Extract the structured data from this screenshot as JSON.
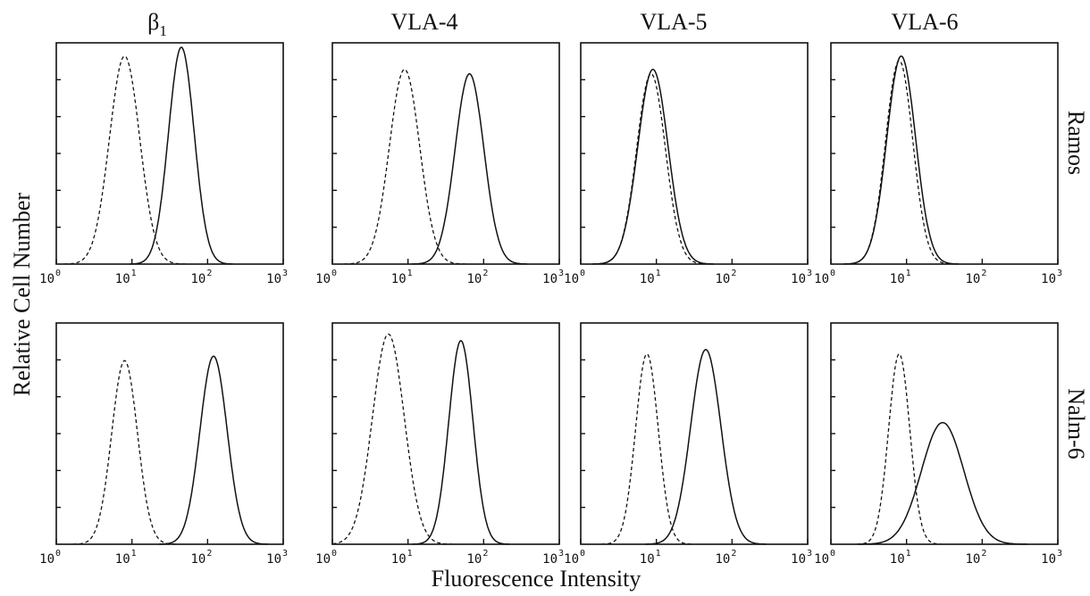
{
  "chart_data": {
    "type": "line",
    "column_titles": [
      "β",
      "VLA-4",
      "VLA-5",
      "VLA-6"
    ],
    "column_title_subscripts": [
      "1",
      "",
      "",
      ""
    ],
    "row_labels": [
      "Ramos",
      "Nalm-6"
    ],
    "ylabel": "Relative Cell Number",
    "xlabel": "Fluorescence Intensity",
    "xscale": "log",
    "xlim": [
      1,
      1000
    ],
    "ylim": [
      0,
      1
    ],
    "x_tick_labels": [
      {
        "base": "10",
        "exp": "0"
      },
      {
        "base": "10",
        "exp": "1"
      },
      {
        "base": "10",
        "exp": "2"
      },
      {
        "base": "10",
        "exp": "3"
      }
    ],
    "y_minor_ticks": 5,
    "line_styles": [
      "dashed",
      "solid"
    ],
    "panels": [
      {
        "row": "Ramos",
        "column": "β1",
        "dashed": {
          "peak_x": 8,
          "peak_y": 0.94,
          "width": 0.2
        },
        "solid": {
          "peak_x": 45,
          "peak_y": 0.98,
          "width": 0.17
        }
      },
      {
        "row": "Ramos",
        "column": "VLA-4",
        "dashed": {
          "peak_x": 9,
          "peak_y": 0.88,
          "width": 0.2
        },
        "solid": {
          "peak_x": 65,
          "peak_y": 0.86,
          "width": 0.19
        }
      },
      {
        "row": "Ramos",
        "column": "VLA-5",
        "dashed": {
          "peak_x": 8.5,
          "peak_y": 0.86,
          "width": 0.19
        },
        "solid": {
          "peak_x": 9,
          "peak_y": 0.88,
          "width": 0.2
        }
      },
      {
        "row": "Ramos",
        "column": "VLA-6",
        "dashed": {
          "peak_x": 8,
          "peak_y": 0.92,
          "width": 0.18
        },
        "solid": {
          "peak_x": 8.5,
          "peak_y": 0.94,
          "width": 0.19
        }
      },
      {
        "row": "Nalm-6",
        "column": "β1",
        "dashed": {
          "peak_x": 8,
          "peak_y": 0.83,
          "width": 0.17
        },
        "solid": {
          "peak_x": 120,
          "peak_y": 0.85,
          "width": 0.18
        }
      },
      {
        "row": "Nalm-6",
        "column": "VLA-4",
        "dashed": {
          "peak_x": 5.5,
          "peak_y": 0.95,
          "width": 0.21
        },
        "solid": {
          "peak_x": 50,
          "peak_y": 0.92,
          "width": 0.16
        }
      },
      {
        "row": "Nalm-6",
        "column": "VLA-5",
        "dashed": {
          "peak_x": 7.5,
          "peak_y": 0.86,
          "width": 0.15
        },
        "solid": {
          "peak_x": 45,
          "peak_y": 0.88,
          "width": 0.2
        }
      },
      {
        "row": "Nalm-6",
        "column": "VLA-6",
        "dashed": {
          "peak_x": 8,
          "peak_y": 0.86,
          "width": 0.14
        },
        "solid": {
          "peak_x": 30,
          "peak_y": 0.55,
          "width": 0.28
        }
      }
    ]
  }
}
